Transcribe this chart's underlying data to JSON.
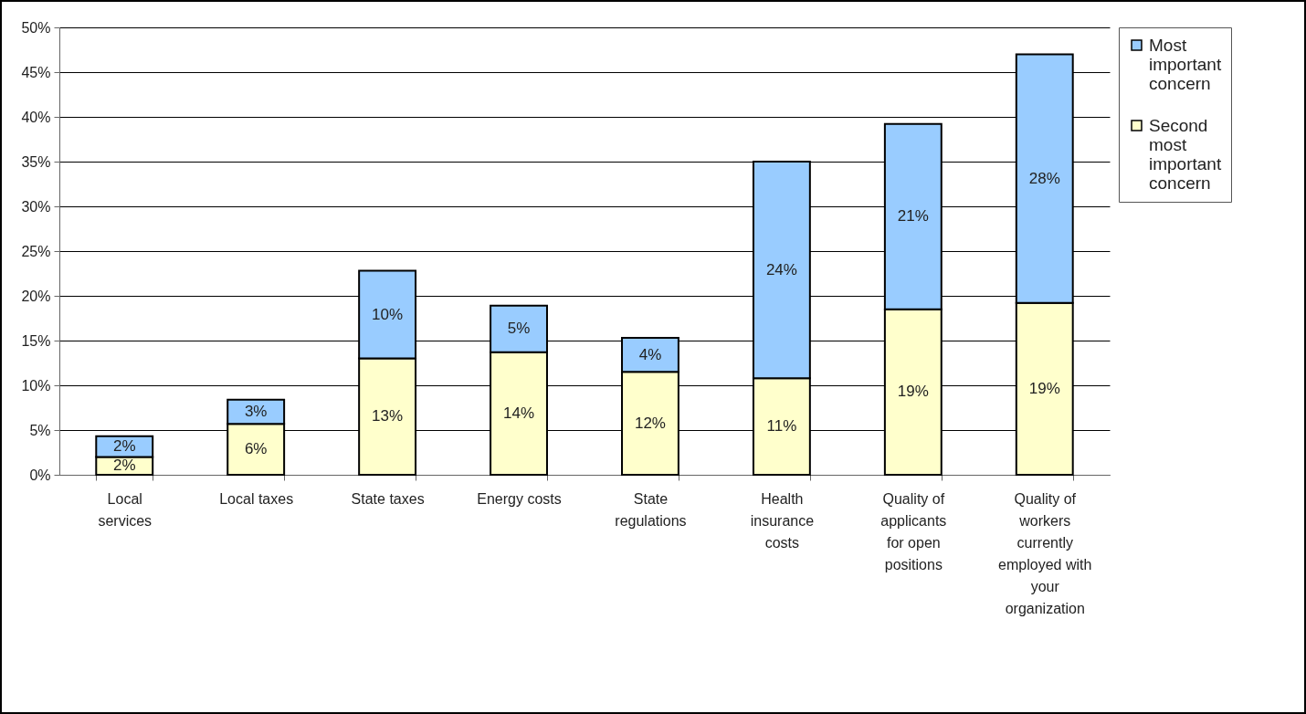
{
  "chart_data": {
    "type": "bar",
    "stacked": true,
    "categories": [
      "Local services",
      "Local taxes",
      "State taxes",
      "Energy costs",
      "State regulations",
      "Health insurance costs",
      "Quality of applicants for open positions",
      "Quality of workers currently employed with your organization"
    ],
    "series": [
      {
        "name": "Second most important concern",
        "color": "#ffffcc",
        "values": [
          2.0,
          5.7,
          13.0,
          13.7,
          11.5,
          10.8,
          18.5,
          19.2
        ],
        "value_labels": [
          "2%",
          "6%",
          "13%",
          "14%",
          "12%",
          "11%",
          "19%",
          "19%"
        ]
      },
      {
        "name": "Most important concern",
        "color": "#99ccff",
        "values": [
          2.3,
          2.7,
          9.8,
          5.2,
          3.8,
          24.2,
          20.7,
          27.8
        ],
        "value_labels": [
          "2%",
          "3%",
          "10%",
          "5%",
          "4%",
          "24%",
          "21%",
          "28%"
        ]
      }
    ],
    "ylim": [
      0,
      50
    ],
    "yticks": [
      {
        "value": 0,
        "label": "0%"
      },
      {
        "value": 5,
        "label": "5%"
      },
      {
        "value": 10,
        "label": "10%"
      },
      {
        "value": 15,
        "label": "15%"
      },
      {
        "value": 20,
        "label": "20%"
      },
      {
        "value": 25,
        "label": "25%"
      },
      {
        "value": 30,
        "label": "30%"
      },
      {
        "value": 35,
        "label": "35%"
      },
      {
        "value": 40,
        "label": "40%"
      },
      {
        "value": 45,
        "label": "45%"
      },
      {
        "value": 50,
        "label": "50%"
      }
    ],
    "grid": "y",
    "legend": "right"
  }
}
